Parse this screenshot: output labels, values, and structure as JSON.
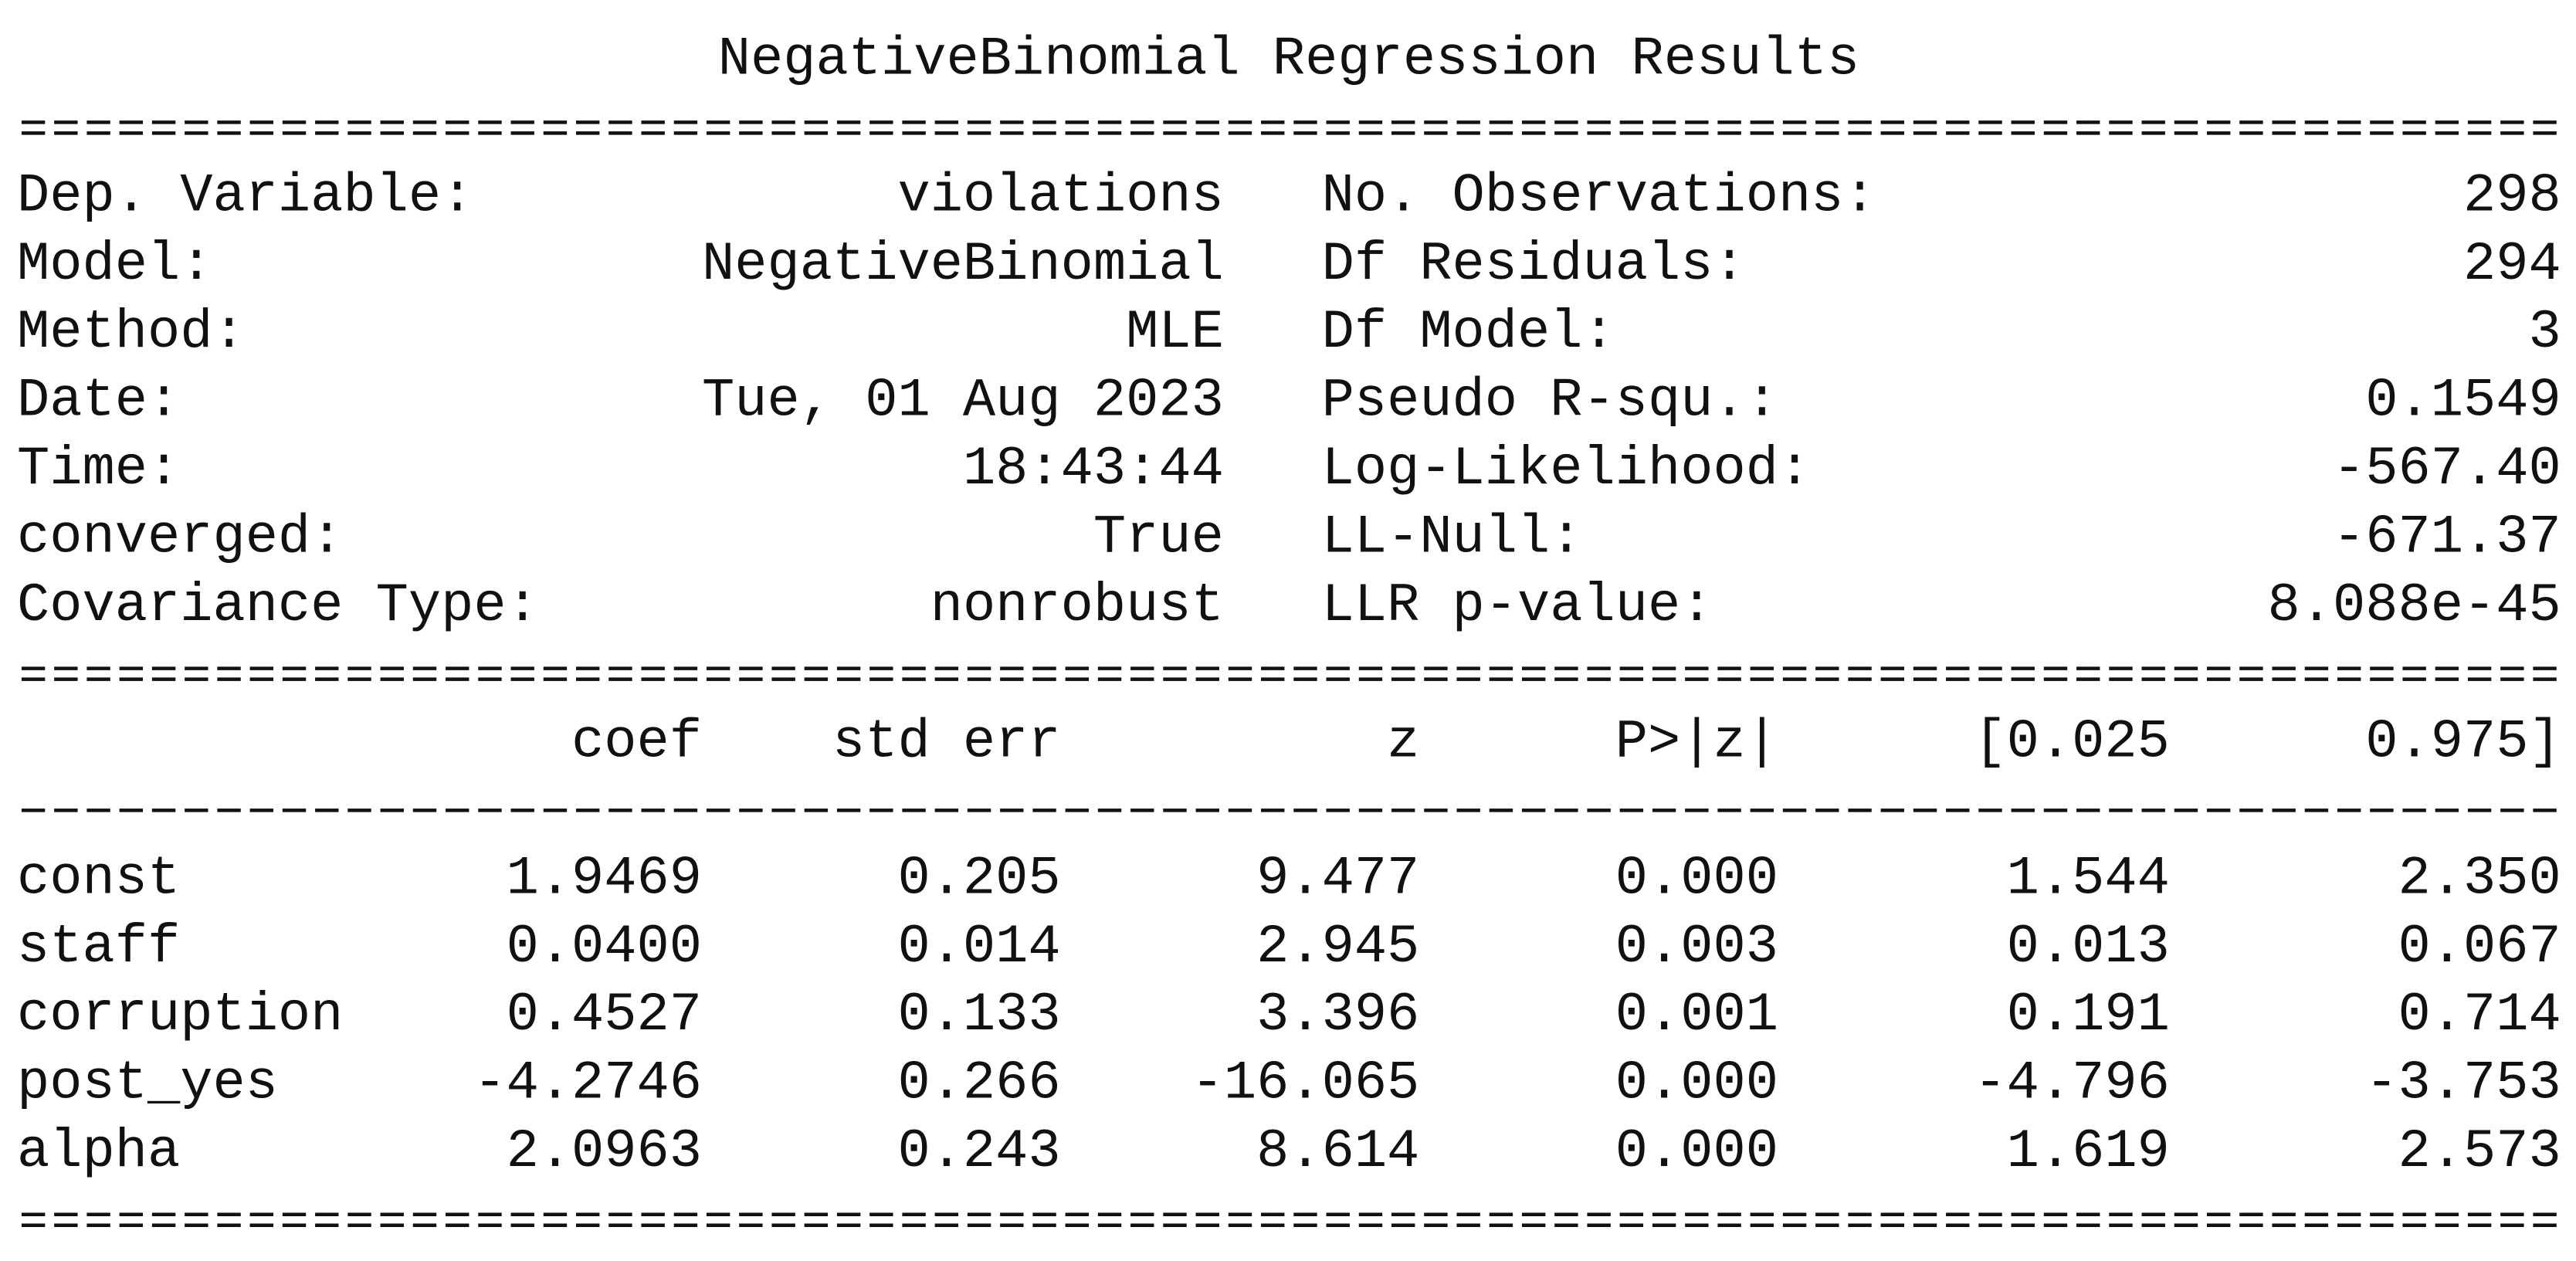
{
  "title": "NegativeBinomial Regression Results",
  "summary": {
    "rows": [
      [
        "Dep. Variable:",
        "violations",
        "No. Observations:",
        "298"
      ],
      [
        "Model:",
        "NegativeBinomial",
        "Df Residuals:",
        "294"
      ],
      [
        "Method:",
        "MLE",
        "Df Model:",
        "3"
      ],
      [
        "Date:",
        "Tue, 01 Aug 2023",
        "Pseudo R-squ.:",
        "0.1549"
      ],
      [
        "Time:",
        "18:43:44",
        "Log-Likelihood:",
        "-567.40"
      ],
      [
        "converged:",
        "True",
        "LL-Null:",
        "-671.37"
      ],
      [
        "Covariance Type:",
        "nonrobust",
        "LLR p-value:",
        "8.088e-45"
      ]
    ]
  },
  "coefficients": {
    "columns": [
      "coef",
      "std err",
      "z",
      "P>|z|",
      "[0.025",
      "0.975]"
    ],
    "rows": [
      {
        "name": "const",
        "values": [
          "1.9469",
          "0.205",
          "9.477",
          "0.000",
          "1.544",
          "2.350"
        ]
      },
      {
        "name": "staff",
        "values": [
          "0.0400",
          "0.014",
          "2.945",
          "0.003",
          "0.013",
          "0.067"
        ]
      },
      {
        "name": "corruption",
        "values": [
          "0.4527",
          "0.133",
          "3.396",
          "0.001",
          "0.191",
          "0.714"
        ]
      },
      {
        "name": "post_yes",
        "values": [
          "-4.2746",
          "0.266",
          "-16.065",
          "0.000",
          "-4.796",
          "-3.753"
        ]
      },
      {
        "name": "alpha",
        "values": [
          "2.0963",
          "0.243",
          "8.614",
          "0.000",
          "1.619",
          "2.573"
        ]
      }
    ]
  }
}
